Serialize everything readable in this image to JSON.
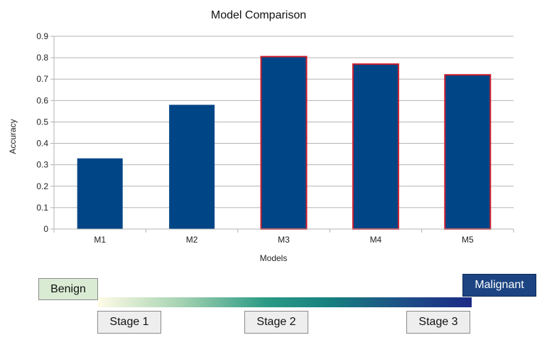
{
  "chart_data": {
    "type": "bar",
    "title": "Model Comparison",
    "xlabel": "Models",
    "ylabel": "Accuracy",
    "categories": [
      "M1",
      "M2",
      "M3",
      "M4",
      "M5"
    ],
    "values": [
      0.33,
      0.58,
      0.805,
      0.77,
      0.72
    ],
    "highlighted": [
      false,
      false,
      true,
      true,
      true
    ],
    "ylim": [
      0,
      0.9
    ],
    "yticks": [
      "0",
      "0.1",
      "0.2",
      "0.3",
      "0.4",
      "0.5",
      "0.6",
      "0.7",
      "0.8",
      "0.9"
    ],
    "grid": true,
    "bar_color": "#004586",
    "highlight_border_color": "#cc1f2f"
  },
  "legend": {
    "low_label": "Benign",
    "high_label": "Malignant",
    "stages": [
      "Stage 1",
      "Stage 2",
      "Stage 3"
    ]
  }
}
